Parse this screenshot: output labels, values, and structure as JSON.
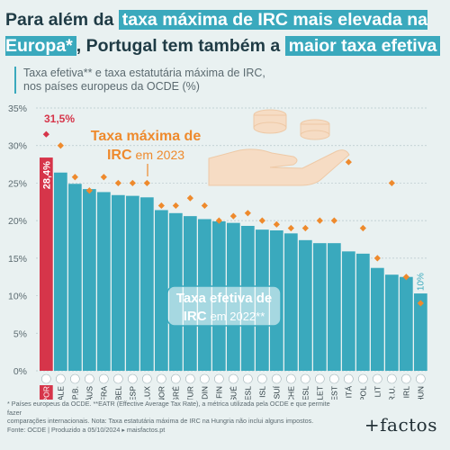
{
  "title": {
    "part1": "Para além da ",
    "hl1": "taxa máxima de IRC mais elevada na Europa*",
    "part2": ", Portugal tem também a ",
    "hl2": "maior taxa efetiva"
  },
  "subtitle": {
    "line1": "Taxa efetiva** e taxa estatutária máxima de IRC,",
    "line2": "nos países europeus da OCDE (%)"
  },
  "annotations": {
    "max_rate_line1": "Taxa máxima de",
    "max_rate_irc": "IRC",
    "max_rate_year": "em 2023",
    "eff_rate_line1": "Taxa efetiva de",
    "eff_rate_irc": "IRC",
    "eff_rate_year": "em 2022**",
    "por_bar_label": "28,4%",
    "por_dot_label": "31,5%",
    "hun_bar_label": "10%"
  },
  "notes": {
    "line1": "* Países europeus da OCDE. **EATR (Effective Average Tax Rate), a métrica utilizada pela OCDE e que permite fazer",
    "line2": "comparações internacionais. Nota: Taxa estatutária máxima de IRC na Hungria não inclui alguns impostos.",
    "line3": "Fonte: OCDE  |  Produzido a 05/10/2024  ▸ maisfactos.pt"
  },
  "logo": "+factos",
  "colors": {
    "bar": "#3aa9bd",
    "highlight": "#d6354a",
    "dot": "#ee8a2d",
    "background": "#e9f1f1"
  },
  "chart_data": {
    "type": "bar",
    "categories": [
      "POR",
      "ALE",
      "P.B.",
      "ÁUS",
      "FRA",
      "BEL",
      "ESP",
      "LUX",
      "NOR",
      "GRÉ",
      "TUR",
      "DIN",
      "FIN",
      "SUÉ",
      "ESL",
      "ISL",
      "SUÍ",
      "CHE",
      "ESL",
      "LET",
      "EST",
      "ITÁ",
      "POL",
      "LIT",
      "R.U.",
      "IRL",
      "HUN"
    ],
    "series": [
      {
        "name": "Taxa efetiva de IRC em 2022**",
        "values": [
          28.4,
          26.4,
          24.9,
          24.2,
          23.8,
          23.4,
          23.3,
          23.1,
          21.4,
          21.0,
          20.6,
          20.2,
          19.9,
          19.7,
          19.3,
          18.8,
          18.7,
          18.3,
          17.4,
          17.0,
          17.0,
          15.9,
          15.6,
          13.7,
          12.8,
          12.5,
          10.3
        ]
      },
      {
        "name": "Taxa máxima de IRC em 2023",
        "values": [
          31.5,
          30.0,
          25.8,
          24.0,
          25.8,
          25.0,
          25.0,
          25.0,
          22.0,
          22.0,
          23.0,
          22.0,
          20.0,
          20.6,
          21.0,
          20.0,
          19.5,
          19.0,
          19.0,
          20.0,
          20.0,
          27.8,
          19.0,
          15.0,
          25.0,
          12.5,
          9.0
        ]
      }
    ],
    "ylim": [
      0,
      35
    ],
    "yticks": [
      0,
      5,
      10,
      15,
      20,
      25,
      30,
      35
    ],
    "ytick_labels": [
      "0%",
      "5%",
      "10%",
      "15%",
      "20%",
      "25%",
      "30%",
      "35%"
    ],
    "grid": true
  }
}
